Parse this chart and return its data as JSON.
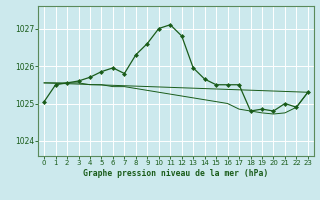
{
  "title": "Graphe pression niveau de la mer (hPa)",
  "bg_color": "#cce9ed",
  "grid_color": "#ffffff",
  "line_color": "#1a5c1a",
  "marker_color": "#1a5c1a",
  "xlim": [
    -0.5,
    23.5
  ],
  "ylim": [
    1023.6,
    1027.6
  ],
  "yticks": [
    1024,
    1025,
    1026,
    1027
  ],
  "xticks": [
    0,
    1,
    2,
    3,
    4,
    5,
    6,
    7,
    8,
    9,
    10,
    11,
    12,
    13,
    14,
    15,
    16,
    17,
    18,
    19,
    20,
    21,
    22,
    23
  ],
  "series1_x": [
    0,
    1,
    2,
    3,
    4,
    5,
    6,
    7,
    8,
    9,
    10,
    11,
    12,
    13,
    14,
    15,
    16,
    17,
    18,
    19,
    20,
    21,
    22,
    23
  ],
  "series1_y": [
    1025.05,
    1025.5,
    1025.55,
    1025.6,
    1025.7,
    1025.85,
    1025.95,
    1025.8,
    1026.3,
    1026.6,
    1027.0,
    1027.1,
    1026.8,
    1025.95,
    1025.65,
    1025.5,
    1025.5,
    1025.5,
    1024.8,
    1024.85,
    1024.8,
    1025.0,
    1024.9,
    1025.3
  ],
  "series2_x": [
    0,
    1,
    2,
    3,
    4,
    5,
    6,
    7,
    8,
    9,
    10,
    11,
    12,
    13,
    14,
    15,
    16,
    17,
    18,
    19,
    20,
    21,
    22,
    23
  ],
  "series2_y": [
    1025.55,
    1025.55,
    1025.55,
    1025.55,
    1025.5,
    1025.5,
    1025.45,
    1025.45,
    1025.4,
    1025.35,
    1025.3,
    1025.25,
    1025.2,
    1025.15,
    1025.1,
    1025.05,
    1025.0,
    1024.85,
    1024.8,
    1024.75,
    1024.72,
    1024.75,
    1024.9,
    1025.3
  ],
  "series3_x": [
    0,
    23
  ],
  "series3_y": [
    1025.55,
    1025.3
  ],
  "spine_color": "#5a8a5a"
}
